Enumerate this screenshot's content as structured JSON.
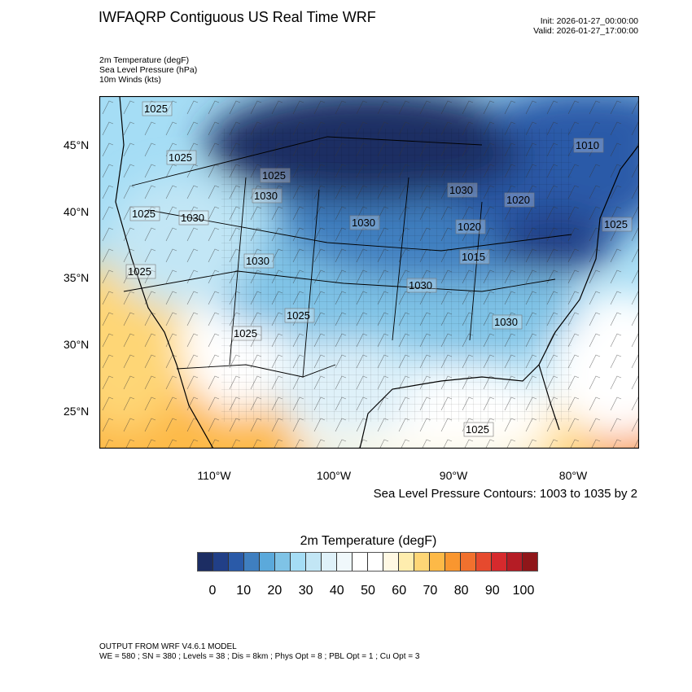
{
  "header": {
    "title": "IWFAQRP Contiguous US Real Time WRF",
    "init": "Init: 2026-01-27_00:00:00",
    "valid": "Valid: 2026-01-27_17:00:00"
  },
  "fields": [
    "2m Temperature   (degF)",
    "Sea Level Pressure   (hPa)",
    "10m Winds   (kts)"
  ],
  "map": {
    "lat_ticks": [
      "45°N",
      "40°N",
      "35°N",
      "30°N",
      "25°N"
    ],
    "lon_ticks": [
      "110°W",
      "100°W",
      "90°W",
      "80°W"
    ],
    "pressure_labels": [
      "1025",
      "1025",
      "1025",
      "1025",
      "1025",
      "1025",
      "1025",
      "1025",
      "1030",
      "1030",
      "1030",
      "1030",
      "1030",
      "1030",
      "1030",
      "1020",
      "1020",
      "1015",
      "1010",
      "1025"
    ],
    "contour_note": "Sea Level Pressure Contours: 1003 to 1035 by 2"
  },
  "colorbar": {
    "title": "2m Temperature  (degF)",
    "labels": [
      "0",
      "10",
      "20",
      "30",
      "40",
      "50",
      "60",
      "70",
      "80",
      "90",
      "100"
    ],
    "colors": [
      "#1c2d63",
      "#213f87",
      "#2a5aa8",
      "#3f7fc0",
      "#5ba9db",
      "#7fc3e6",
      "#a5ddf5",
      "#c2e6f5",
      "#dff1f9",
      "#f0f8fb",
      "#ffffff",
      "#ffffff",
      "#fff8e3",
      "#feedae",
      "#fed676",
      "#fdb947",
      "#f9962f",
      "#f1712e",
      "#e64a2e",
      "#d62a2d",
      "#b51c25",
      "#8f1619"
    ]
  },
  "footer": {
    "line1": "OUTPUT FROM WRF V4.6.1 MODEL",
    "line2": "WE = 580 ; SN = 380 ; Levels = 38 ; Dis = 8km ; Phys Opt = 8 ; PBL Opt = 1 ; Cu Opt = 3"
  }
}
